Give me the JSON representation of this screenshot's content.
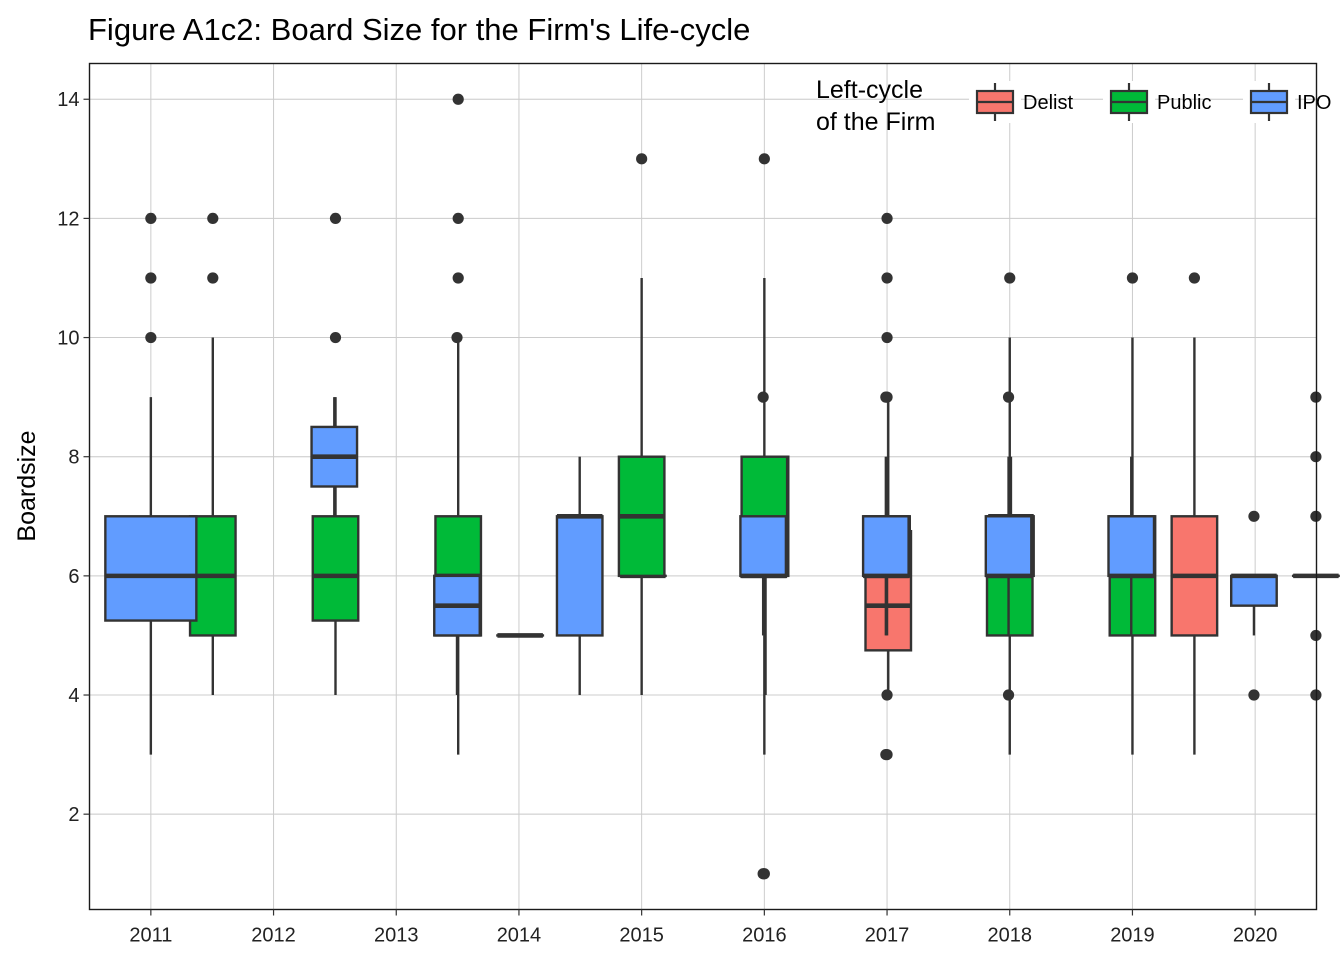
{
  "chart_data": {
    "type": "boxplot",
    "title": "Figure A1c2: Board Size for the Firm's Life-cycle",
    "xlabel": "",
    "ylabel": "Boardsize",
    "categories": [
      "2011",
      "2012",
      "2013",
      "2014",
      "2015",
      "2016",
      "2017",
      "2018",
      "2019",
      "2020"
    ],
    "ylim": [
      0.4,
      14.6
    ],
    "yticks": [
      2,
      4,
      6,
      8,
      10,
      12,
      14
    ],
    "grid": true,
    "legend": {
      "title_lines": [
        "Left-cycle",
        "of the Firm"
      ],
      "placement": "top-right"
    },
    "series": [
      {
        "name": "Delist",
        "color": "#F8766D",
        "boxes": [
          {
            "category": "2015",
            "q1": 5,
            "median": 5,
            "q3": 5,
            "whisker_low": 5,
            "whisker_high": 5,
            "outliers": []
          },
          {
            "category": "2016",
            "q1": 6,
            "median": 6,
            "q3": 6,
            "whisker_low": 6,
            "whisker_high": 6,
            "outliers": []
          },
          {
            "category": "2017",
            "q1": 6,
            "median": 7,
            "q3": 8,
            "whisker_low": 4,
            "whisker_high": 8,
            "outliers": []
          },
          {
            "category": "2018",
            "q1": 4.75,
            "median": 5.5,
            "q3": 6.75,
            "whisker_low": 4,
            "whisker_high": 9,
            "outliers": []
          },
          {
            "category": "2019",
            "q1": 6,
            "median": 7,
            "q3": 7,
            "whisker_low": 5,
            "whisker_high": 8,
            "outliers": []
          },
          {
            "category": "2020",
            "q1": 5,
            "median": 6,
            "q3": 7,
            "whisker_low": 3,
            "whisker_high": 10,
            "outliers": [
              11
            ]
          }
        ]
      },
      {
        "name": "Public",
        "color": "#00BA38",
        "boxes": [
          {
            "category": "2012",
            "q1": 5,
            "median": 6,
            "q3": 7,
            "whisker_low": 4,
            "whisker_high": 10,
            "outliers": [
              11,
              12
            ]
          },
          {
            "category": "2013",
            "q1": 5.25,
            "median": 6,
            "q3": 7,
            "whisker_low": 4,
            "whisker_high": 9,
            "outliers": [
              10,
              12
            ]
          },
          {
            "category": "2014",
            "q1": 5,
            "median": 6,
            "q3": 7,
            "whisker_low": 3,
            "whisker_high": 10,
            "outliers": [
              11,
              12,
              14
            ]
          },
          {
            "category": "2015",
            "q1": 6,
            "median": 7,
            "q3": 8,
            "whisker_low": 4,
            "whisker_high": 11,
            "outliers": [
              13
            ]
          },
          {
            "category": "2016",
            "q1": 6,
            "median": 6,
            "q3": 8,
            "whisker_low": 3,
            "whisker_high": 11,
            "outliers": [
              1,
              13
            ]
          },
          {
            "category": "2017",
            "q1": 6,
            "median": 6,
            "q3": 7,
            "whisker_low": 5,
            "whisker_high": 8,
            "outliers": [
              3,
              4,
              9,
              10,
              11,
              12
            ]
          },
          {
            "category": "2018",
            "q1": 5,
            "median": 6,
            "q3": 7,
            "whisker_low": 3,
            "whisker_high": 10,
            "outliers": [
              11
            ]
          },
          {
            "category": "2019",
            "q1": 5,
            "median": 6,
            "q3": 7,
            "whisker_low": 3,
            "whisker_high": 10,
            "outliers": [
              11
            ]
          }
        ]
      },
      {
        "name": "IPO",
        "color": "#619CFF",
        "boxes": [
          {
            "category": "2011",
            "q1": 5.25,
            "median": 6,
            "q3": 7,
            "whisker_low": 3,
            "whisker_high": 9,
            "outliers": [
              10,
              11,
              12
            ]
          },
          {
            "category": "2012",
            "q1": 7.5,
            "median": 8,
            "q3": 8.5,
            "whisker_low": 7,
            "whisker_high": 9,
            "outliers": []
          },
          {
            "category": "2013",
            "q1": 5,
            "median": 5.5,
            "q3": 6,
            "whisker_low": 4,
            "whisker_high": 6,
            "outliers": [
              10
            ]
          },
          {
            "category": "2014",
            "q1": 5,
            "median": 7,
            "q3": 7,
            "whisker_low": 4,
            "whisker_high": 8,
            "outliers": []
          },
          {
            "category": "2015",
            "q1": 6,
            "median": 6,
            "q3": 7,
            "whisker_low": 5,
            "whisker_high": 7,
            "outliers": [
              1,
              9
            ]
          },
          {
            "category": "2016",
            "q1": 6,
            "median": 6,
            "q3": 7,
            "whisker_low": 5,
            "whisker_high": 8,
            "outliers": [
              3,
              9
            ]
          },
          {
            "category": "2017",
            "q1": 6,
            "median": 6,
            "q3": 7,
            "whisker_low": 5,
            "whisker_high": 8,
            "outliers": [
              4,
              9
            ]
          },
          {
            "category": "2018",
            "q1": 6,
            "median": 6,
            "q3": 7,
            "whisker_low": 5,
            "whisker_high": 8,
            "outliers": []
          },
          {
            "category": "2019",
            "q1": 5.5,
            "median": 6,
            "q3": 6,
            "whisker_low": 5,
            "whisker_high": 6,
            "outliers": [
              4,
              7
            ]
          },
          {
            "category": "2020",
            "q1": 6,
            "median": 6,
            "q3": 6,
            "whisker_low": 6,
            "whisker_high": 6,
            "outliers": [
              4,
              5,
              7,
              8,
              9
            ]
          }
        ]
      }
    ]
  }
}
